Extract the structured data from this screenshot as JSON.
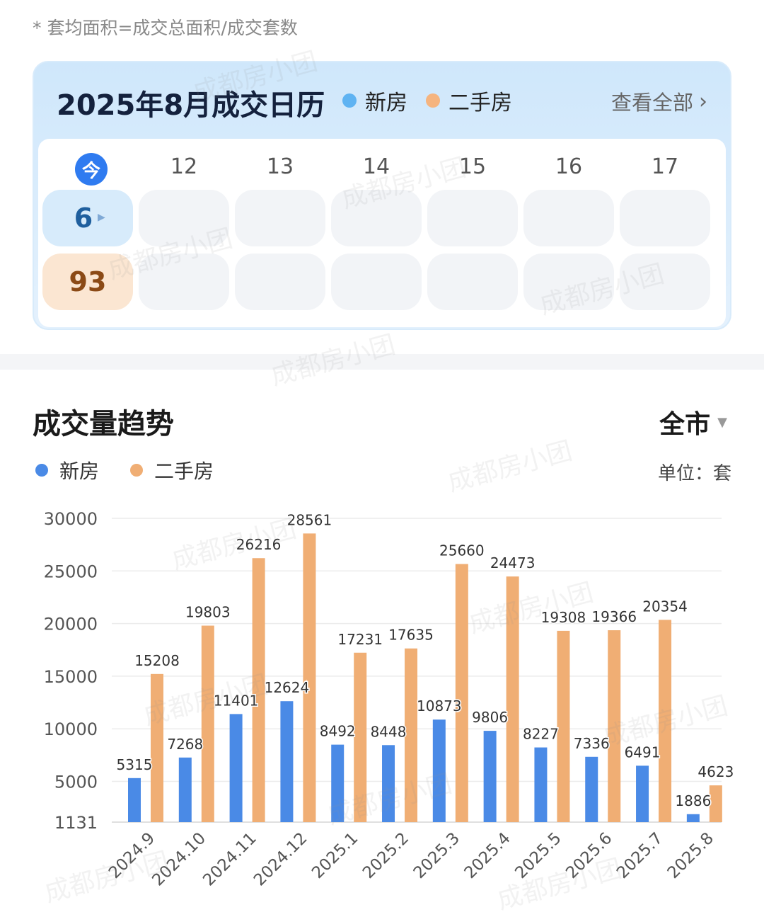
{
  "footnote": "* 套均面积=成交总面积/成交套数",
  "calendar": {
    "title": "2025年8月成交日历",
    "legend_new": "新房",
    "legend_second": "二手房",
    "view_all": "查看全部",
    "today_label": "今",
    "days": [
      "12",
      "13",
      "14",
      "15",
      "16",
      "17"
    ],
    "today_new": "6",
    "today_second": "93"
  },
  "trend": {
    "title": "成交量趋势",
    "city": "全市",
    "legend_new": "新房",
    "legend_second": "二手房",
    "unit": "单位：套"
  },
  "colors": {
    "new": "#4a8ae6",
    "second": "#f0ae74",
    "legend_new_dot": "#5fb3f2",
    "legend_second_dot": "#f5b47f"
  },
  "watermark": "成都房小团",
  "chart_data": {
    "type": "bar",
    "categories": [
      "2024.9",
      "2024.10",
      "2024.11",
      "2024.12",
      "2025.1",
      "2025.2",
      "2025.3",
      "2025.4",
      "2025.5",
      "2025.6",
      "2025.7",
      "2025.8"
    ],
    "series": [
      {
        "name": "新房",
        "values": [
          5315,
          7268,
          11401,
          12624,
          8492,
          8448,
          10873,
          9806,
          8227,
          7336,
          6491,
          1886
        ]
      },
      {
        "name": "二手房",
        "values": [
          15208,
          19803,
          26216,
          28561,
          17231,
          17635,
          25660,
          24473,
          19308,
          19366,
          20354,
          4623
        ]
      }
    ],
    "yticks": [
      1131,
      5000,
      10000,
      15000,
      20000,
      25000,
      30000
    ],
    "ylim": [
      1131,
      30000
    ],
    "grid": true
  }
}
